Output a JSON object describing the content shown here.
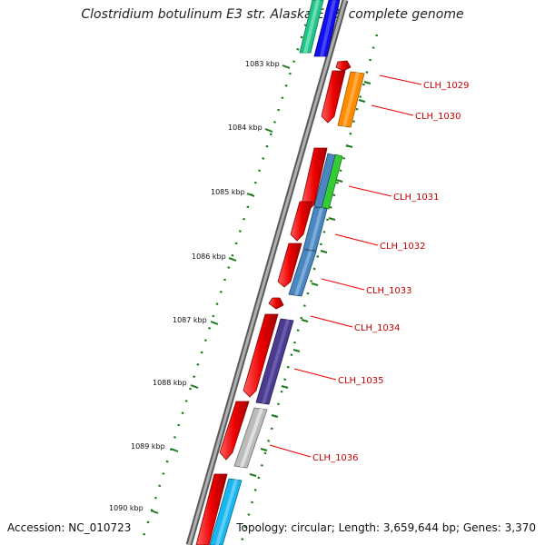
{
  "title": "Clostridium botulinum E3 str. Alaska E43, complete genome",
  "footer": {
    "accession": "Accession: NC_010723",
    "topology": "Topology: circular; Length: 3,659,644 bp; Genes: 3,370"
  },
  "ticks": [
    "1083 kbp",
    "1084 kbp",
    "1085 kbp",
    "1086 kbp",
    "1087 kbp",
    "1088 kbp",
    "1089 kbp",
    "1090 kbp"
  ],
  "genes": [
    "CLH_1029",
    "CLH_1030",
    "CLH_1031",
    "CLH_1032",
    "CLH_1033",
    "CLH_1034",
    "CLH_1035",
    "CLH_1036"
  ],
  "colors": {
    "cds": "#ee0000",
    "backbone": "#808080",
    "tick": "#1a7a1a",
    "label": "#cc0000",
    "cog_orange": "#ff8c00",
    "cog_green": "#33cc33",
    "cog_steelblue": "#4a86c0",
    "cog_purple": "#4b3b8f",
    "cog_gray": "#bbbbbb",
    "cog_cyan": "#1ab6f0",
    "cog_teal": "#20c48a",
    "cog_blue": "#1010ee"
  }
}
